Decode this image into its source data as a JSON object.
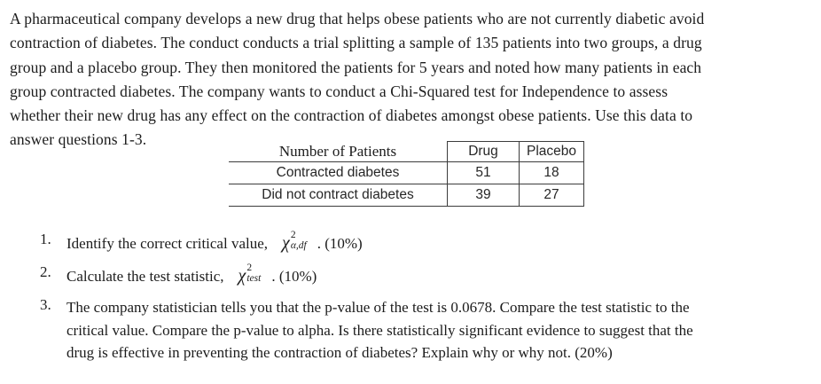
{
  "intro": {
    "lines": [
      "A pharmaceutical company develops a new drug that helps obese patients who are not currently diabetic avoid",
      "contraction of diabetes. The conduct conducts a trial splitting a sample of 135 patients into two groups, a drug",
      "group and a placebo group. They then monitored the patients for 5 years and noted how many patients in each",
      "group contracted diabetes. The company wants to conduct a Chi-Squared test for Independence to assess",
      "whether their new drug has any effect on the contraction of diabetes amongst obese patients. Use this data to",
      "answer questions 1-3."
    ]
  },
  "table": {
    "header": {
      "label": "Number of Patients",
      "drug": "Drug",
      "placebo": "Placebo"
    },
    "rows": [
      {
        "label": "Contracted diabetes",
        "drug": "51",
        "placebo": "18"
      },
      {
        "label": "Did not contract diabetes",
        "drug": "39",
        "placebo": "27"
      }
    ]
  },
  "questions": [
    {
      "number": "1.",
      "text_before": "Identify the correct critical value,",
      "formula": {
        "base": "χ",
        "sup": "2",
        "sub": "α,df"
      },
      "text_after": ". (10%)"
    },
    {
      "number": "2.",
      "text_before": "Calculate the test statistic,",
      "formula": {
        "base": "χ",
        "sup": "2",
        "sub": "test"
      },
      "text_after": ". (10%)"
    },
    {
      "number": "3.",
      "lines": [
        "The company statistician tells you that the p-value of the test is 0.0678. Compare the test statistic to the",
        "critical value. Compare the p-value to alpha. Is there statistically significant evidence to suggest that the",
        "drug is effective in preventing the contraction of diabetes? Explain why or why not. (20%)"
      ]
    }
  ],
  "colors": {
    "text": "#1c1c1c",
    "table_border": "#3c3c3c",
    "background": "#ffffff"
  }
}
